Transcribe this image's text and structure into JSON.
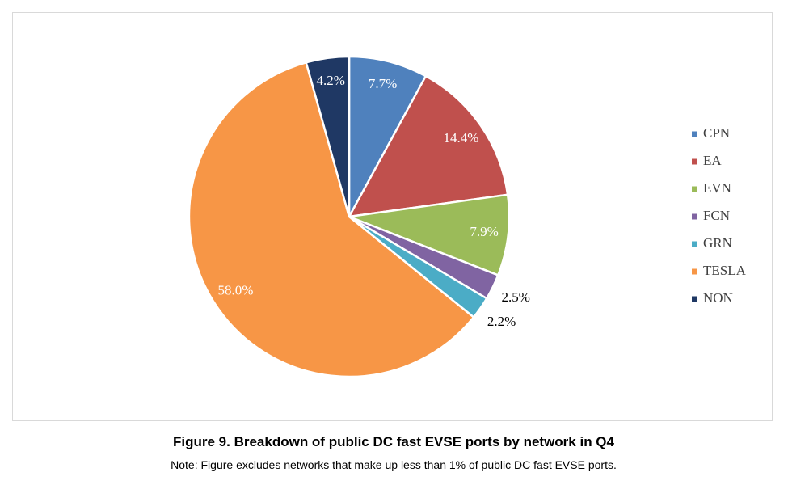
{
  "chart_data": {
    "type": "pie",
    "title": "Figure 9. Breakdown of public DC fast EVSE ports by network in Q4",
    "note": "Note: Figure excludes networks that make up less than 1% of public DC fast EVSE ports.",
    "categories": [
      "CPN",
      "EA",
      "EVN",
      "FCN",
      "GRN",
      "TESLA",
      "NON"
    ],
    "values": [
      7.7,
      14.4,
      7.9,
      2.5,
      2.2,
      58.0,
      4.2
    ],
    "value_labels": [
      "7.7%",
      "14.4%",
      "7.9%",
      "2.5%",
      "2.2%",
      "58.0%",
      "4.2%"
    ],
    "colors": [
      "#4f81bd",
      "#c0504d",
      "#9bbb59",
      "#8064a2",
      "#4bacc6",
      "#f79646",
      "#1f3864"
    ],
    "legend": "right"
  }
}
